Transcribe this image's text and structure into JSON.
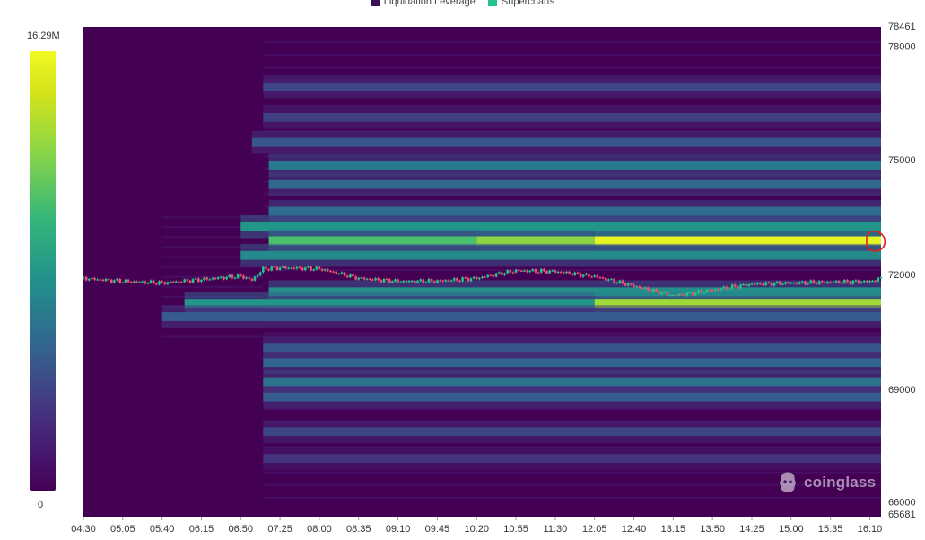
{
  "legend": [
    {
      "label": "Liquidation Leverage",
      "color": "#3a0f5c"
    },
    {
      "label": "Supercharts",
      "color": "#22c38e"
    }
  ],
  "colorbar": {
    "max_label": "16.29M",
    "min_label": "0"
  },
  "watermark": {
    "text": "coinglass",
    "icon": "coinglass-logo-icon"
  },
  "chart_data": {
    "type": "heatmap",
    "title": "",
    "legend_position": "top-center",
    "grid": false,
    "x_ticks": [
      "04:30",
      "05:05",
      "05:40",
      "06:15",
      "06:50",
      "07:25",
      "08:00",
      "08:35",
      "09:10",
      "09:45",
      "10:20",
      "10:55",
      "11:30",
      "12:05",
      "12:40",
      "13:15",
      "13:50",
      "14:25",
      "15:00",
      "15:35",
      "16:10"
    ],
    "y_ticks": [
      78461,
      78000,
      75000,
      72000,
      69000,
      66000,
      65681
    ],
    "y_range": [
      65681,
      78461
    ],
    "x_range_minutes": [
      270,
      980
    ],
    "value_range": [
      0,
      16290000
    ],
    "value_scale_labels": [
      "0",
      "16.29M"
    ],
    "liquidation_bands": [
      {
        "price": 76900,
        "start": "07:10",
        "end": "16:20",
        "intensity": 0.22
      },
      {
        "price": 76100,
        "start": "07:10",
        "end": "16:20",
        "intensity": 0.2
      },
      {
        "price": 75450,
        "start": "07:00",
        "end": "16:20",
        "intensity": 0.28
      },
      {
        "price": 74850,
        "start": "07:15",
        "end": "16:20",
        "intensity": 0.42
      },
      {
        "price": 74350,
        "start": "07:15",
        "end": "16:20",
        "intensity": 0.35
      },
      {
        "price": 73650,
        "start": "07:15",
        "end": "16:20",
        "intensity": 0.38
      },
      {
        "price": 73250,
        "start": "06:50",
        "end": "16:20",
        "intensity": 0.55
      },
      {
        "price": 72880,
        "start": "07:15",
        "end": "10:20",
        "intensity": 0.72
      },
      {
        "price": 72880,
        "start": "10:20",
        "end": "12:05",
        "intensity": 0.82
      },
      {
        "price": 72880,
        "start": "12:05",
        "end": "16:20",
        "intensity": 0.98
      },
      {
        "price": 72500,
        "start": "06:50",
        "end": "16:20",
        "intensity": 0.5
      },
      {
        "price": 71550,
        "start": "07:15",
        "end": "16:20",
        "intensity": 0.52
      },
      {
        "price": 71250,
        "start": "06:00",
        "end": "12:05",
        "intensity": 0.55
      },
      {
        "price": 71250,
        "start": "12:05",
        "end": "16:20",
        "intensity": 0.85
      },
      {
        "price": 70900,
        "start": "05:40",
        "end": "16:20",
        "intensity": 0.3
      },
      {
        "price": 70100,
        "start": "07:10",
        "end": "16:20",
        "intensity": 0.28
      },
      {
        "price": 69700,
        "start": "07:10",
        "end": "16:20",
        "intensity": 0.34
      },
      {
        "price": 69200,
        "start": "07:10",
        "end": "16:20",
        "intensity": 0.4
      },
      {
        "price": 68800,
        "start": "07:10",
        "end": "16:20",
        "intensity": 0.3
      },
      {
        "price": 67900,
        "start": "07:10",
        "end": "16:20",
        "intensity": 0.22
      },
      {
        "price": 67200,
        "start": "07:10",
        "end": "16:20",
        "intensity": 0.16
      }
    ],
    "price_series": {
      "name": "Supercharts",
      "times": [
        "04:30",
        "05:05",
        "05:40",
        "06:15",
        "06:50",
        "07:00",
        "07:10",
        "07:25",
        "08:00",
        "08:35",
        "09:10",
        "09:45",
        "10:20",
        "10:40",
        "10:55",
        "11:30",
        "12:05",
        "12:40",
        "13:15",
        "13:30",
        "13:50",
        "14:25",
        "15:00",
        "15:35",
        "16:10",
        "16:20"
      ],
      "close": [
        71900,
        71820,
        71780,
        71870,
        71960,
        71850,
        72150,
        72180,
        72150,
        71900,
        71820,
        71830,
        71900,
        72020,
        72100,
        72080,
        71950,
        71700,
        71450,
        71500,
        71600,
        71750,
        71780,
        71800,
        71820,
        71900
      ]
    }
  }
}
